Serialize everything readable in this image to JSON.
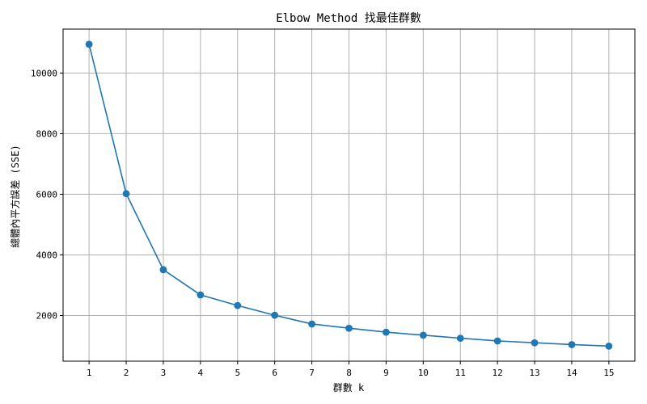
{
  "chart_data": {
    "type": "line",
    "title": "Elbow Method 找最佳群數",
    "xlabel": "群數 k",
    "ylabel": "總體內平方誤差 (SSE)",
    "x": [
      1,
      2,
      3,
      4,
      5,
      6,
      7,
      8,
      9,
      10,
      11,
      12,
      13,
      14,
      15
    ],
    "series": [
      {
        "values": [
          10950,
          6020,
          3510,
          2680,
          2330,
          2010,
          1720,
          1580,
          1450,
          1350,
          1250,
          1160,
          1100,
          1040,
          990
        ],
        "color": "#1f77b4",
        "marker": "circle"
      }
    ],
    "xticks": [
      1,
      2,
      3,
      4,
      5,
      6,
      7,
      8,
      9,
      10,
      11,
      12,
      13,
      14,
      15
    ],
    "yticks": [
      2000,
      4000,
      6000,
      8000,
      10000
    ],
    "xlim": [
      0.3,
      15.7
    ],
    "ylim": [
      493,
      11450
    ],
    "grid": true
  }
}
